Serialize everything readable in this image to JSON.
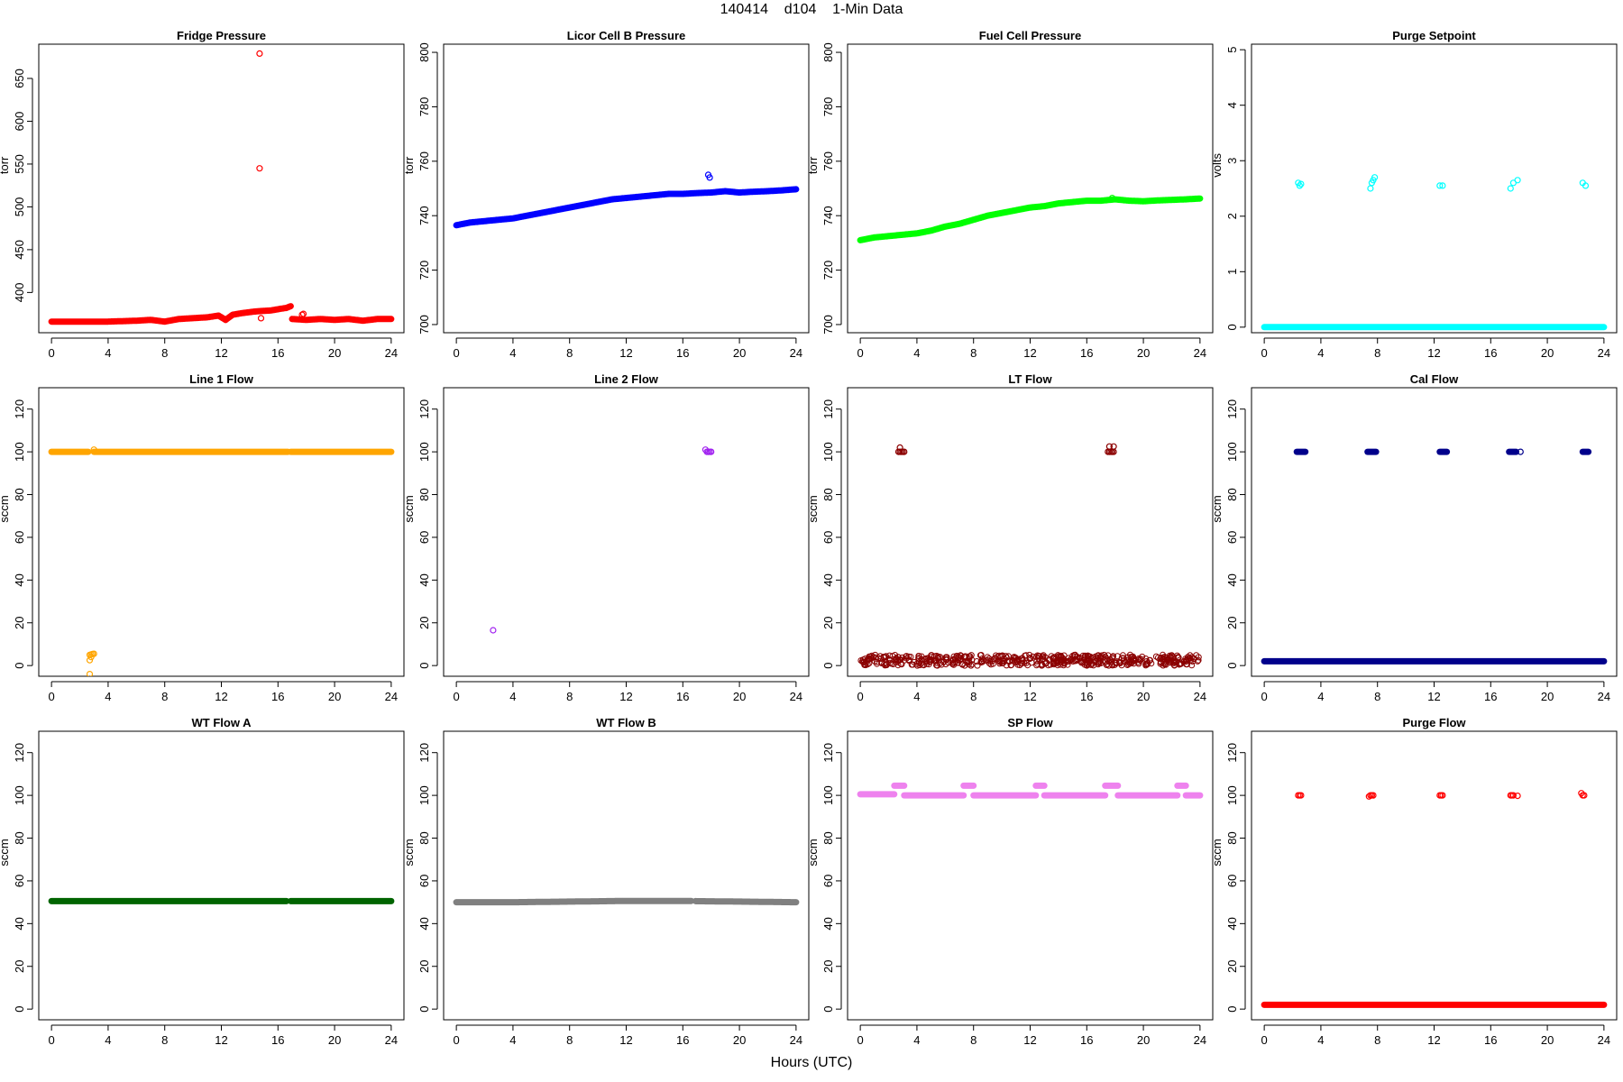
{
  "figure": {
    "title": "140414    d104    1-Min Data",
    "xlabel": "Hours (UTC)"
  },
  "chart_data": [
    {
      "type": "scatter",
      "title": "Fridge Pressure",
      "ylabel": "torr",
      "color": "#ff0000",
      "xlim": [
        -0.9,
        24.9
      ],
      "ylim": [
        353,
        690
      ],
      "xticks": [
        0,
        4,
        8,
        12,
        16,
        20,
        24
      ],
      "yticks": [
        400,
        450,
        500,
        550,
        600,
        650
      ],
      "series": [
        {
          "kind": "band",
          "x": [
            0,
            2,
            4,
            6,
            7,
            8,
            9,
            10,
            11,
            11.8,
            12.3,
            12.8,
            13.5,
            14.5,
            15.5,
            16.2,
            16.6,
            16.9
          ],
          "y": [
            366,
            366,
            366,
            367,
            368,
            366,
            369,
            370,
            371,
            373,
            368,
            374,
            376,
            378,
            379,
            381,
            382,
            384
          ]
        },
        {
          "kind": "band",
          "x": [
            17,
            18,
            19,
            20,
            21,
            22,
            23,
            24
          ],
          "y": [
            369,
            368,
            369,
            368,
            369,
            367,
            369,
            369
          ]
        },
        {
          "kind": "points",
          "x": [
            14.7,
            14.7,
            14.8,
            17.7,
            17.8
          ],
          "y": [
            679,
            545,
            370,
            374,
            375
          ]
        }
      ]
    },
    {
      "type": "scatter",
      "title": "Licor Cell B Pressure",
      "ylabel": "torr",
      "color": "#0000ff",
      "xlim": [
        -0.9,
        24.9
      ],
      "ylim": [
        697,
        803
      ],
      "xticks": [
        0,
        4,
        8,
        12,
        16,
        20,
        24
      ],
      "yticks": [
        700,
        720,
        740,
        760,
        780,
        800
      ],
      "series": [
        {
          "kind": "band",
          "x": [
            0,
            1,
            2,
            3,
            4,
            5,
            6,
            7,
            8,
            9,
            10,
            11,
            12,
            13,
            14,
            15,
            16,
            17,
            18,
            19,
            20,
            21,
            22,
            23,
            24
          ],
          "y": [
            736.5,
            737.5,
            738,
            738.5,
            739,
            740,
            741,
            742,
            743,
            744,
            745,
            746,
            746.5,
            747,
            747.5,
            748,
            748,
            748.3,
            748.5,
            749,
            748.5,
            748.8,
            749,
            749.3,
            749.7
          ]
        },
        {
          "kind": "points",
          "x": [
            17.8,
            17.9
          ],
          "y": [
            755,
            754
          ]
        }
      ]
    },
    {
      "type": "scatter",
      "title": "Fuel Cell Pressure",
      "ylabel": "torr",
      "color": "#00ff00",
      "xlim": [
        -0.9,
        24.9
      ],
      "ylim": [
        697,
        803
      ],
      "xticks": [
        0,
        4,
        8,
        12,
        16,
        20,
        24
      ],
      "yticks": [
        700,
        720,
        740,
        760,
        780,
        800
      ],
      "series": [
        {
          "kind": "band",
          "x": [
            0,
            1,
            2,
            3,
            4,
            5,
            6,
            7,
            8,
            9,
            10,
            11,
            12,
            13,
            14,
            15,
            16,
            17,
            18,
            19,
            20,
            21,
            22,
            23,
            24
          ],
          "y": [
            731,
            732,
            732.5,
            733,
            733.5,
            734.5,
            736,
            737,
            738.5,
            740,
            741,
            742,
            743,
            743.5,
            744.5,
            745,
            745.5,
            745.5,
            746,
            745.5,
            745.3,
            745.6,
            745.8,
            746,
            746.3
          ]
        },
        {
          "kind": "points",
          "x": [
            17.8
          ],
          "y": [
            746.5
          ]
        }
      ]
    },
    {
      "type": "scatter",
      "title": "Purge Setpoint",
      "ylabel": "volts",
      "color": "#00ffff",
      "xlim": [
        -0.9,
        24.9
      ],
      "ylim": [
        -0.1,
        5.1
      ],
      "xticks": [
        0,
        4,
        8,
        12,
        16,
        20,
        24
      ],
      "yticks": [
        0,
        1,
        2,
        3,
        4,
        5
      ],
      "series": [
        {
          "kind": "band",
          "x": [
            0,
            24
          ],
          "y": [
            0,
            0
          ]
        },
        {
          "kind": "points",
          "x": [
            2.4,
            2.5,
            2.6,
            7.5,
            7.6,
            7.7,
            7.8,
            12.4,
            12.6,
            17.4,
            17.6,
            17.9,
            22.5,
            22.7
          ],
          "y": [
            2.6,
            2.55,
            2.58,
            2.5,
            2.6,
            2.65,
            2.7,
            2.55,
            2.55,
            2.5,
            2.6,
            2.65,
            2.6,
            2.55
          ]
        }
      ]
    },
    {
      "type": "scatter",
      "title": "Line 1 Flow",
      "ylabel": "sccm",
      "color": "#ffa500",
      "xlim": [
        -0.9,
        24.9
      ],
      "ylim": [
        -5,
        130
      ],
      "xticks": [
        0,
        4,
        8,
        12,
        16,
        20,
        24
      ],
      "yticks": [
        0,
        20,
        40,
        60,
        80,
        100,
        120
      ],
      "series": [
        {
          "kind": "band",
          "x": [
            0,
            2.6
          ],
          "y": [
            100,
            100
          ]
        },
        {
          "kind": "band",
          "x": [
            3.0,
            16.7
          ],
          "y": [
            100,
            100
          ]
        },
        {
          "kind": "band",
          "x": [
            16.9,
            24
          ],
          "y": [
            100,
            100
          ]
        },
        {
          "kind": "points",
          "x": [
            2.7,
            2.8,
            2.9,
            3.0,
            2.7,
            2.7,
            2.8,
            3.0
          ],
          "y": [
            5,
            5.2,
            5.4,
            5.5,
            2.5,
            -4,
            4,
            101
          ]
        }
      ]
    },
    {
      "type": "scatter",
      "title": "Line 2 Flow",
      "ylabel": "sccm",
      "color": "#a020f0",
      "xlim": [
        -0.9,
        24.9
      ],
      "ylim": [
        -5,
        130
      ],
      "xticks": [
        0,
        4,
        8,
        12,
        16,
        20,
        24
      ],
      "yticks": [
        0,
        20,
        40,
        60,
        80,
        100,
        120
      ],
      "series": [
        {
          "kind": "points",
          "x": [
            2.6,
            17.6,
            17.7,
            17.8,
            17.9,
            18.0
          ],
          "y": [
            16.5,
            101,
            100,
            100,
            100,
            100
          ]
        }
      ]
    },
    {
      "type": "scatter",
      "title": "LT Flow",
      "ylabel": "sccm",
      "color": "#8b0000",
      "xlim": [
        -0.9,
        24.9
      ],
      "ylim": [
        -5,
        130
      ],
      "xticks": [
        0,
        4,
        8,
        12,
        16,
        20,
        24
      ],
      "yticks": [
        0,
        20,
        40,
        60,
        80,
        100,
        120
      ],
      "series": [
        {
          "kind": "noise",
          "x": [
            0,
            24
          ],
          "y": [
            0,
            5
          ]
        },
        {
          "kind": "points",
          "x": [
            2.7,
            2.8,
            2.9,
            3.0,
            3.1,
            2.8,
            17.5,
            17.6,
            17.7,
            17.8,
            17.9,
            17.6,
            17.9
          ],
          "y": [
            100,
            100,
            100,
            100,
            100,
            102,
            100,
            100,
            100,
            100,
            100,
            102.5,
            102.5
          ]
        }
      ]
    },
    {
      "type": "scatter",
      "title": "Cal Flow",
      "ylabel": "sccm",
      "color": "#00008b",
      "xlim": [
        -0.9,
        24.9
      ],
      "ylim": [
        -5,
        130
      ],
      "xticks": [
        0,
        4,
        8,
        12,
        16,
        20,
        24
      ],
      "yticks": [
        0,
        20,
        40,
        60,
        80,
        100,
        120
      ],
      "series": [
        {
          "kind": "band",
          "x": [
            0,
            24
          ],
          "y": [
            2,
            2
          ]
        },
        {
          "kind": "band",
          "x": [
            2.3,
            2.9
          ],
          "y": [
            100,
            100
          ]
        },
        {
          "kind": "band",
          "x": [
            7.3,
            7.9
          ],
          "y": [
            100,
            100
          ]
        },
        {
          "kind": "band",
          "x": [
            12.4,
            12.9
          ],
          "y": [
            100,
            100
          ]
        },
        {
          "kind": "band",
          "x": [
            17.3,
            17.8
          ],
          "y": [
            100,
            100
          ]
        },
        {
          "kind": "band",
          "x": [
            22.5,
            22.9
          ],
          "y": [
            100,
            100
          ]
        },
        {
          "kind": "points",
          "x": [
            18.1
          ],
          "y": [
            100
          ]
        }
      ]
    },
    {
      "type": "scatter",
      "title": "WT Flow A",
      "ylabel": "sccm",
      "color": "#006400",
      "xlim": [
        -0.9,
        24.9
      ],
      "ylim": [
        -5,
        130
      ],
      "xticks": [
        0,
        4,
        8,
        12,
        16,
        20,
        24
      ],
      "yticks": [
        0,
        20,
        40,
        60,
        80,
        100,
        120
      ],
      "series": [
        {
          "kind": "band",
          "x": [
            0,
            16.6
          ],
          "y": [
            50.5,
            50.5
          ]
        },
        {
          "kind": "band",
          "x": [
            16.9,
            24
          ],
          "y": [
            50.5,
            50.5
          ]
        }
      ]
    },
    {
      "type": "scatter",
      "title": "WT Flow B",
      "ylabel": "sccm",
      "color": "#808080",
      "xlim": [
        -0.9,
        24.9
      ],
      "ylim": [
        -5,
        130
      ],
      "xticks": [
        0,
        4,
        8,
        12,
        16,
        20,
        24
      ],
      "yticks": [
        0,
        20,
        40,
        60,
        80,
        100,
        120
      ],
      "series": [
        {
          "kind": "band",
          "x": [
            0,
            4,
            8,
            12,
            16,
            16.6
          ],
          "y": [
            50,
            50,
            50.3,
            50.6,
            50.6,
            50.6
          ]
        },
        {
          "kind": "band",
          "x": [
            16.9,
            20,
            24
          ],
          "y": [
            50.5,
            50.3,
            50
          ]
        }
      ]
    },
    {
      "type": "scatter",
      "title": "SP Flow",
      "ylabel": "sccm",
      "color": "#ee82ee",
      "xlim": [
        -0.9,
        24.9
      ],
      "ylim": [
        -5,
        130
      ],
      "xticks": [
        0,
        4,
        8,
        12,
        16,
        20,
        24
      ],
      "yticks": [
        0,
        20,
        40,
        60,
        80,
        100,
        120
      ],
      "series": [
        {
          "kind": "band",
          "x": [
            0,
            2.4
          ],
          "y": [
            100.5,
            100.5
          ]
        },
        {
          "kind": "band",
          "x": [
            2.4,
            3.1
          ],
          "y": [
            104.5,
            104.5
          ]
        },
        {
          "kind": "band",
          "x": [
            3.1,
            7.3
          ],
          "y": [
            100,
            100
          ]
        },
        {
          "kind": "band",
          "x": [
            7.3,
            8.0
          ],
          "y": [
            104.5,
            104.5
          ]
        },
        {
          "kind": "band",
          "x": [
            8.0,
            12.4
          ],
          "y": [
            100,
            100
          ]
        },
        {
          "kind": "band",
          "x": [
            12.4,
            13.0
          ],
          "y": [
            104.5,
            104.5
          ]
        },
        {
          "kind": "band",
          "x": [
            13.0,
            17.3
          ],
          "y": [
            100,
            100
          ]
        },
        {
          "kind": "band",
          "x": [
            17.3,
            18.2
          ],
          "y": [
            104.5,
            104.5
          ]
        },
        {
          "kind": "band",
          "x": [
            18.2,
            22.4
          ],
          "y": [
            100,
            100
          ]
        },
        {
          "kind": "band",
          "x": [
            22.4,
            23.0
          ],
          "y": [
            104.5,
            104.5
          ]
        },
        {
          "kind": "band",
          "x": [
            23.0,
            24
          ],
          "y": [
            100,
            100
          ]
        }
      ]
    },
    {
      "type": "scatter",
      "title": "Purge Flow",
      "ylabel": "sccm",
      "color": "#ff0000",
      "xlim": [
        -0.9,
        24.9
      ],
      "ylim": [
        -5,
        130
      ],
      "xticks": [
        0,
        4,
        8,
        12,
        16,
        20,
        24
      ],
      "yticks": [
        0,
        20,
        40,
        60,
        80,
        100,
        120
      ],
      "series": [
        {
          "kind": "band",
          "x": [
            0,
            24
          ],
          "y": [
            2,
            2
          ]
        },
        {
          "kind": "points",
          "x": [
            2.4,
            2.5,
            2.6,
            7.4,
            7.5,
            7.6,
            7.7,
            12.4,
            12.5,
            12.6,
            17.4,
            17.5,
            17.6,
            17.9,
            22.4,
            22.5,
            22.6
          ],
          "y": [
            100,
            100,
            100,
            99.5,
            100,
            100,
            100,
            100,
            100,
            100,
            100,
            100,
            100,
            99.8,
            101,
            100,
            100
          ]
        }
      ]
    }
  ]
}
